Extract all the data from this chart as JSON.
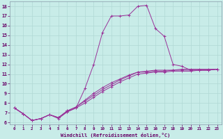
{
  "xlabel": "Windchill (Refroidissement éolien,°C)",
  "bg_color": "#c8ece8",
  "grid_color": "#b0d8d4",
  "line_color": "#993399",
  "xlim": [
    -0.5,
    23.5
  ],
  "ylim": [
    5.8,
    18.5
  ],
  "xticks": [
    0,
    1,
    2,
    3,
    4,
    5,
    6,
    7,
    8,
    9,
    10,
    11,
    12,
    13,
    14,
    15,
    16,
    17,
    18,
    19,
    20,
    21,
    22,
    23
  ],
  "yticks": [
    6,
    7,
    8,
    9,
    10,
    11,
    12,
    13,
    14,
    15,
    16,
    17,
    18
  ],
  "lines": [
    {
      "x": [
        0,
        1,
        2,
        3,
        4,
        5,
        6,
        7,
        8,
        9,
        10,
        11,
        12,
        13,
        14,
        15,
        16,
        17,
        18,
        19,
        20,
        21,
        22,
        23
      ],
      "y": [
        7.5,
        6.9,
        6.2,
        6.4,
        6.8,
        6.4,
        7.1,
        7.5,
        9.5,
        12.0,
        15.3,
        17.0,
        17.0,
        17.1,
        18.0,
        18.1,
        15.7,
        14.9,
        12.0,
        11.8,
        11.4,
        11.4,
        11.4,
        11.5
      ]
    },
    {
      "x": [
        0,
        1,
        2,
        3,
        4,
        5,
        6,
        7,
        8,
        9,
        10,
        11,
        12,
        13,
        14,
        15,
        16,
        17,
        18,
        19,
        20,
        21,
        22,
        23
      ],
      "y": [
        7.5,
        6.9,
        6.2,
        6.4,
        6.8,
        6.5,
        7.2,
        7.6,
        8.2,
        8.8,
        9.4,
        9.9,
        10.4,
        10.8,
        11.2,
        11.2,
        11.3,
        11.3,
        11.4,
        11.4,
        11.4,
        11.4,
        11.4,
        11.5
      ]
    },
    {
      "x": [
        0,
        1,
        2,
        3,
        4,
        5,
        6,
        7,
        8,
        9,
        10,
        11,
        12,
        13,
        14,
        15,
        16,
        17,
        18,
        19,
        20,
        21,
        22,
        23
      ],
      "y": [
        7.5,
        6.9,
        6.2,
        6.4,
        6.8,
        6.5,
        7.2,
        7.6,
        8.3,
        9.0,
        9.6,
        10.1,
        10.5,
        10.9,
        11.2,
        11.3,
        11.4,
        11.4,
        11.4,
        11.5,
        11.5,
        11.5,
        11.5,
        11.5
      ]
    },
    {
      "x": [
        0,
        1,
        2,
        3,
        4,
        5,
        6,
        7,
        8,
        9,
        10,
        11,
        12,
        13,
        14,
        15,
        16,
        17,
        18,
        19,
        20,
        21,
        22,
        23
      ],
      "y": [
        7.5,
        6.9,
        6.2,
        6.4,
        6.8,
        6.5,
        7.1,
        7.5,
        8.0,
        8.6,
        9.2,
        9.7,
        10.2,
        10.6,
        11.0,
        11.1,
        11.2,
        11.2,
        11.3,
        11.3,
        11.3,
        11.4,
        11.4,
        11.5
      ]
    }
  ]
}
